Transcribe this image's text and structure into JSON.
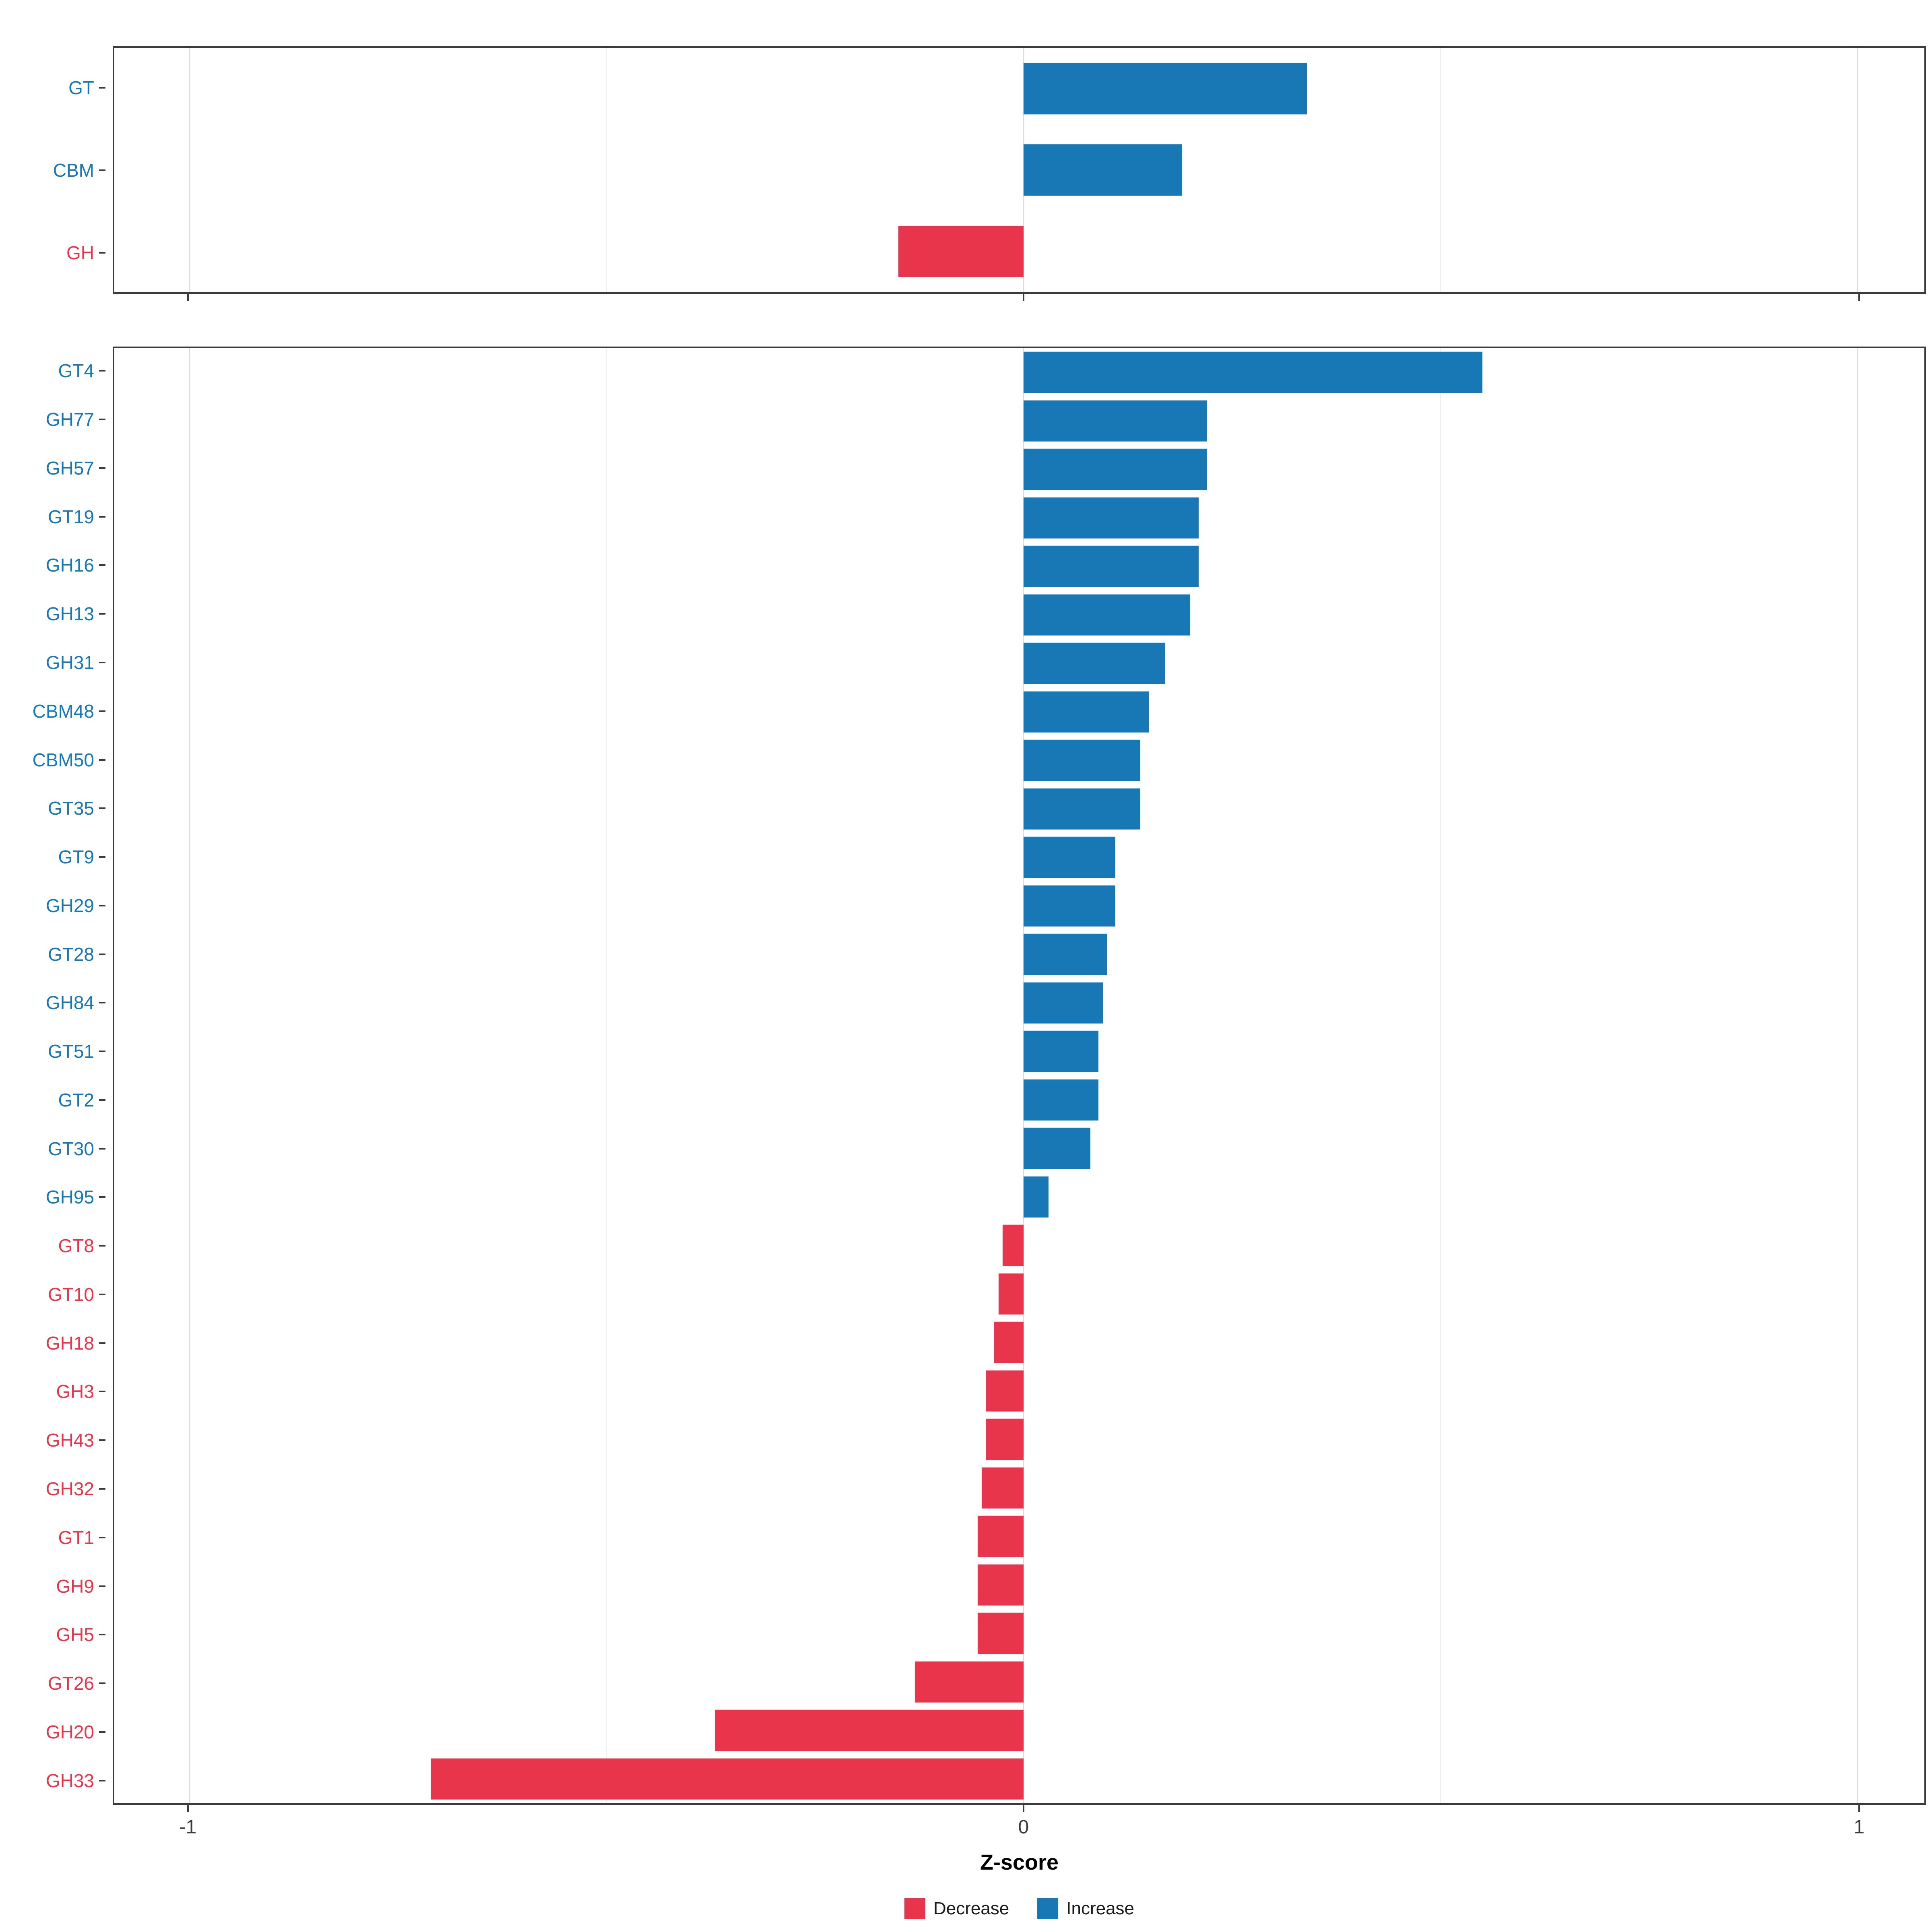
{
  "colors": {
    "increase": "#1778b5",
    "decrease": "#e8354c",
    "axis_text": "#3c3c3c",
    "panel_border": "#3c3c3c",
    "grid_major": "#dcdcdc",
    "grid_minor": "#f0f0f0"
  },
  "chart_data": {
    "type": "bar",
    "orientation": "horizontal",
    "title": "",
    "xlabel": "Z-score",
    "ylabel": "",
    "xlim": [
      -1.09,
      1.08
    ],
    "x_ticks": [
      -1,
      0,
      1
    ],
    "x_tick_labels": [
      "-1",
      "0",
      "1"
    ],
    "x_minor_ticks": [
      -0.5,
      0.5
    ],
    "grid": true,
    "legend_position": "bottom",
    "legend": [
      {
        "label": "Decrease",
        "color": "#e8354c"
      },
      {
        "label": "Increase",
        "color": "#1778b5"
      }
    ],
    "panels": [
      {
        "name": "cazyme-class-summary",
        "categories": [
          "GT",
          "CBM",
          "GH"
        ],
        "values": [
          0.34,
          0.19,
          -0.15
        ]
      },
      {
        "name": "cazyme-families",
        "categories": [
          "GT4",
          "GH77",
          "GH57",
          "GT19",
          "GH16",
          "GH13",
          "GH31",
          "CBM48",
          "CBM50",
          "GT35",
          "GT9",
          "GH29",
          "GT28",
          "GH84",
          "GT51",
          "GT2",
          "GT30",
          "GH95",
          "GT8",
          "GT10",
          "GH18",
          "GH3",
          "GH43",
          "GH32",
          "GT1",
          "GH9",
          "GH5",
          "GT26",
          "GH20",
          "GH33"
        ],
        "values": [
          0.55,
          0.22,
          0.22,
          0.21,
          0.21,
          0.2,
          0.17,
          0.15,
          0.14,
          0.14,
          0.11,
          0.11,
          0.1,
          0.095,
          0.09,
          0.09,
          0.08,
          0.03,
          -0.025,
          -0.03,
          -0.035,
          -0.045,
          -0.045,
          -0.05,
          -0.055,
          -0.055,
          -0.055,
          -0.13,
          -0.37,
          -0.71
        ]
      }
    ]
  }
}
